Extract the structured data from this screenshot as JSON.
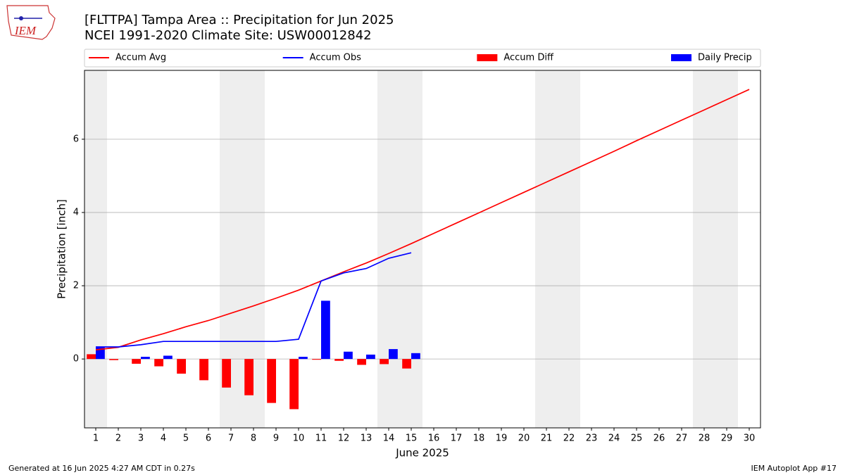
{
  "chart_data": {
    "type": "combo",
    "title": "[FLTTPA] Tampa Area :: Precipitation for Jun 2025",
    "subtitle": "NCEI 1991-2020 Climate Site: USW00012842",
    "x_label": "June 2025",
    "y_label": "Precipitation [inch]",
    "x": [
      1,
      2,
      3,
      4,
      5,
      6,
      7,
      8,
      9,
      10,
      11,
      12,
      13,
      14,
      15,
      16,
      17,
      18,
      19,
      20,
      21,
      22,
      23,
      24,
      25,
      26,
      27,
      28,
      29,
      30
    ],
    "xlim": [
      0.5,
      30.5
    ],
    "xticks": [
      1,
      2,
      3,
      4,
      5,
      6,
      7,
      8,
      9,
      10,
      11,
      12,
      13,
      14,
      15,
      16,
      17,
      18,
      19,
      20,
      21,
      22,
      23,
      24,
      25,
      26,
      27,
      28,
      29,
      30
    ],
    "ylim": [
      -1.88,
      7.88
    ],
    "yticks": [
      0,
      2,
      4,
      6
    ],
    "grid": true,
    "shaded_spans": [
      [
        0.5,
        1.5
      ],
      [
        6.5,
        8.5
      ],
      [
        13.5,
        15.5
      ],
      [
        20.5,
        22.5
      ],
      [
        27.5,
        29.5
      ]
    ],
    "shade_color": "#eeeeee",
    "series": [
      {
        "name": "Accum Avg",
        "type": "line",
        "color": "#ff0000",
        "values": [
          0.25,
          0.32,
          0.52,
          0.69,
          0.88,
          1.05,
          1.25,
          1.45,
          1.66,
          1.88,
          2.13,
          2.38,
          2.62,
          2.88,
          3.15,
          3.43,
          3.71,
          3.99,
          4.27,
          4.55,
          4.83,
          5.11,
          5.39,
          5.67,
          5.96,
          6.24,
          6.52,
          6.8,
          7.08,
          7.36
        ]
      },
      {
        "name": "Accum Obs",
        "type": "line",
        "color": "#0000ff",
        "values": [
          0.33,
          0.33,
          0.39,
          0.48,
          0.48,
          0.48,
          0.48,
          0.48,
          0.48,
          0.54,
          2.13,
          2.35,
          2.47,
          2.75,
          2.9,
          null,
          null,
          null,
          null,
          null,
          null,
          null,
          null,
          null,
          null,
          null,
          null,
          null,
          null,
          null
        ]
      },
      {
        "name": "Accum Diff",
        "type": "bar",
        "color": "#ff0000",
        "values": [
          0.13,
          -0.03,
          -0.13,
          -0.2,
          -0.4,
          -0.58,
          -0.78,
          -0.99,
          -1.2,
          -1.37,
          -0.02,
          -0.05,
          -0.16,
          -0.14,
          -0.26,
          null,
          null,
          null,
          null,
          null,
          null,
          null,
          null,
          null,
          null,
          null,
          null,
          null,
          null,
          null
        ]
      },
      {
        "name": "Daily Precip",
        "type": "bar",
        "color": "#0000ff",
        "values": [
          0.33,
          0,
          0.06,
          0.09,
          0,
          0,
          0,
          0,
          0,
          0.06,
          1.59,
          0.2,
          0.12,
          0.27,
          0.16,
          null,
          null,
          null,
          null,
          null,
          null,
          null,
          null,
          null,
          null,
          null,
          null,
          null,
          null,
          null
        ]
      }
    ]
  },
  "footer": {
    "left": "Generated at 16 Jun 2025 4:27 AM CDT in 0.27s",
    "right": "IEM Autoplot App #17"
  },
  "logo_text": "IEM"
}
